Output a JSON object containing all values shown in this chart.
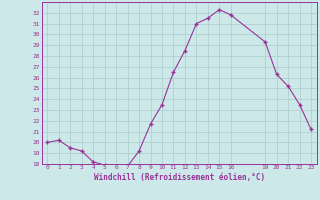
{
  "x": [
    0,
    1,
    2,
    3,
    4,
    5,
    6,
    7,
    8,
    9,
    10,
    11,
    12,
    13,
    14,
    15,
    16,
    19,
    20,
    21,
    22,
    23
  ],
  "y": [
    20.0,
    20.2,
    19.5,
    19.2,
    18.2,
    17.9,
    17.8,
    17.8,
    19.2,
    21.7,
    23.5,
    26.5,
    28.5,
    31.0,
    31.5,
    32.3,
    31.8,
    29.3,
    26.3,
    25.2,
    23.5,
    21.2
  ],
  "line_color": "#993399",
  "marker_color": "#993399",
  "bg_color": "#cce8e8",
  "grid_color": "#aacccc",
  "xlabel": "Windchill (Refroidissement éolien,°C)",
  "xlabel_color": "#993399",
  "tick_color": "#993399",
  "ylim": [
    18,
    33
  ],
  "yticks": [
    18,
    19,
    20,
    21,
    22,
    23,
    24,
    25,
    26,
    27,
    28,
    29,
    30,
    31,
    32
  ],
  "xticks": [
    0,
    1,
    2,
    3,
    4,
    5,
    6,
    7,
    8,
    9,
    10,
    11,
    12,
    13,
    14,
    15,
    16,
    19,
    20,
    21,
    22,
    23
  ],
  "xlim": [
    -0.5,
    23.5
  ]
}
